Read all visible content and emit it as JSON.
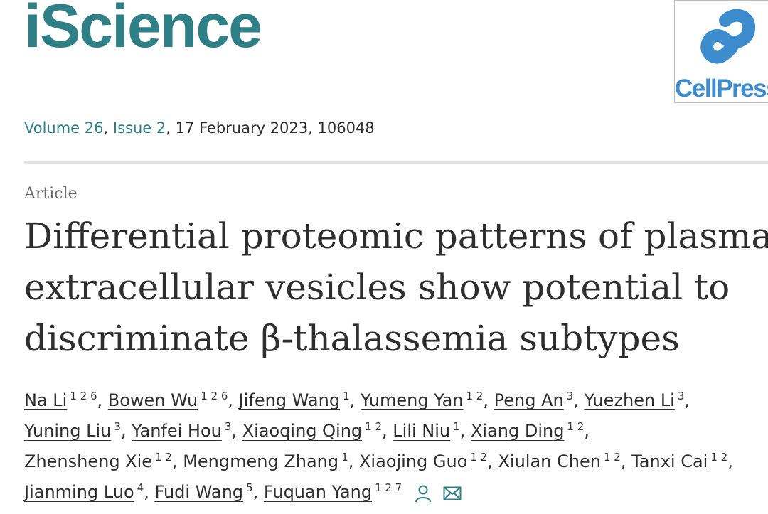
{
  "journal": {
    "name": "iScience"
  },
  "publisher": {
    "name": "CellPress",
    "logo_color": "#3d8ccd"
  },
  "issue": {
    "volume": "Volume 26",
    "separator": ", ",
    "issue": "Issue 2",
    "rest": ", 17 February 2023, 106048"
  },
  "article": {
    "type": "Article",
    "title_lines": [
      "Differential proteomic patterns of plasma",
      "extracellular vesicles show potential to",
      "discriminate β-thalassemia subtypes"
    ]
  },
  "authors": [
    [
      {
        "name": "Na Li",
        "aff": "1 2 6"
      },
      {
        "name": "Bowen Wu",
        "aff": "1 2 6"
      },
      {
        "name": "Jifeng Wang",
        "aff": "1"
      },
      {
        "name": "Yumeng Yan",
        "aff": "1 2"
      },
      {
        "name": "Peng An",
        "aff": "3"
      },
      {
        "name": "Yuezhen Li",
        "aff": "3"
      }
    ],
    [
      {
        "name": "Yuning Liu",
        "aff": "3"
      },
      {
        "name": "Yanfei Hou",
        "aff": "3"
      },
      {
        "name": "Xiaoqing Qing",
        "aff": "1 2"
      },
      {
        "name": "Lili Niu",
        "aff": "1"
      },
      {
        "name": "Xiang Ding",
        "aff": "1 2"
      }
    ],
    [
      {
        "name": "Zhensheng Xie",
        "aff": "1 2"
      },
      {
        "name": "Mengmeng Zhang",
        "aff": "1"
      },
      {
        "name": "Xiaojing Guo",
        "aff": "1 2"
      },
      {
        "name": "Xiulan Chen",
        "aff": "1 2"
      },
      {
        "name": "Tanxi Cai",
        "aff": "1 2"
      }
    ],
    [
      {
        "name": "Jianming Luo",
        "aff": "4"
      },
      {
        "name": "Fudi Wang",
        "aff": "5"
      },
      {
        "name": "Fuquan Yang",
        "aff": "1 2 7"
      }
    ]
  ],
  "icons": {
    "author_profile": "person-icon",
    "email": "envelope-icon"
  },
  "colors": {
    "journal_teal": "#2f7f86",
    "text": "#2e2e2e",
    "muted": "#6b6b6b"
  }
}
